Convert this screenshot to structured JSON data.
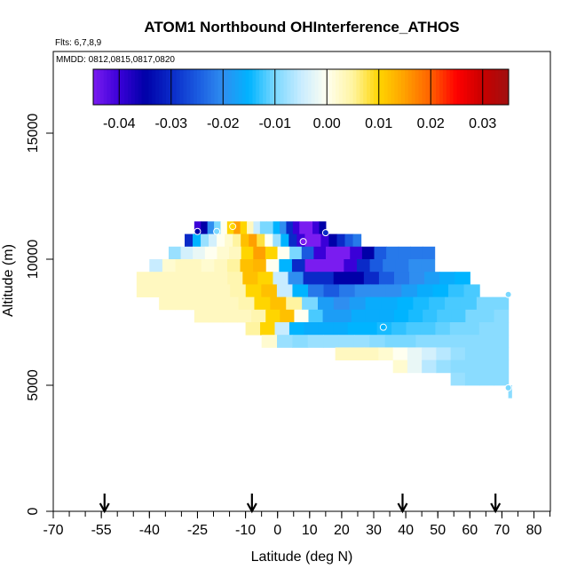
{
  "chart_data": {
    "type": "heatmap",
    "title": "ATOM1 Northbound OHInterference_ATHOS",
    "flights_label": "Flts: 6,7,8,9",
    "dates_label": "MMDD: 0812,0815,0817,0820",
    "xlabel": "Latitude (deg N)",
    "ylabel": "Altitude (m)",
    "xlim": [
      -70,
      85
    ],
    "ylim": [
      0,
      18000
    ],
    "x_ticks": [
      -70,
      -55,
      -40,
      -25,
      -10,
      0,
      10,
      20,
      30,
      40,
      50,
      60,
      70,
      80
    ],
    "x_minor_step": 5,
    "y_ticks": [
      0,
      5000,
      10000,
      15000
    ],
    "colorbar": {
      "range": [
        -0.045,
        0.035
      ],
      "ticks": [
        "-0.04",
        "-0.03",
        "-0.02",
        "-0.01",
        "0.00",
        "0.01",
        "0.02",
        "0.03"
      ],
      "tick_values": [
        -0.04,
        -0.03,
        -0.02,
        -0.01,
        0.0,
        0.01,
        0.02,
        0.03
      ],
      "colors": [
        "#7a1cf0",
        "#3a00d8",
        "#0000a8",
        "#0a2ac8",
        "#1a5ae0",
        "#2f8ef0",
        "#00b4ff",
        "#7ad8ff",
        "#c8ecff",
        "#fffff0",
        "#fff4a0",
        "#ffd500",
        "#ffa000",
        "#ff6000",
        "#ff0000",
        "#c80000",
        "#a01010"
      ]
    },
    "arrow_latitudes": [
      -54,
      -8,
      39,
      68
    ],
    "markers": [
      {
        "lat": -25,
        "alt": 11100,
        "value": -0.035
      },
      {
        "lat": -19,
        "alt": 11100,
        "value": -0.01
      },
      {
        "lat": -14,
        "alt": 11300,
        "value": 0.01
      },
      {
        "lat": 8,
        "alt": 10700,
        "value": -0.045
      },
      {
        "lat": 15,
        "alt": 11050,
        "value": -0.03
      },
      {
        "lat": 33,
        "alt": 7300,
        "value": -0.015
      },
      {
        "lat": 72,
        "alt": 8600,
        "value": -0.01
      },
      {
        "lat": 72,
        "alt": 4900,
        "value": -0.01
      }
    ],
    "rows": [
      {
        "alt": [
          11000,
          11500
        ],
        "lat": [
          -26,
          15
        ],
        "values": [
          -0.04,
          -0.035,
          -0.02,
          -0.01,
          0.0,
          0.01,
          0.015,
          0.01,
          0.003,
          -0.005,
          -0.01,
          -0.01,
          -0.015,
          -0.02,
          -0.03,
          -0.04,
          -0.045,
          -0.045,
          -0.04,
          -0.035
        ]
      },
      {
        "alt": [
          10500,
          11000
        ],
        "lat": [
          -29,
          26
        ],
        "values": [
          -0.03,
          -0.015,
          -0.008,
          -0.004,
          0.0,
          0.002,
          0.005,
          0.012,
          0.015,
          0.008,
          0.0,
          -0.008,
          -0.015,
          -0.03,
          -0.04,
          -0.045,
          -0.045,
          -0.04,
          -0.035,
          -0.03,
          -0.025,
          -0.022
        ]
      },
      {
        "alt": [
          10000,
          10500
        ],
        "lat": [
          -34,
          49
        ],
        "values": [
          -0.008,
          -0.004,
          -0.002,
          0.0,
          0.002,
          0.003,
          0.01,
          0.015,
          0.01,
          0.0,
          -0.01,
          -0.025,
          -0.04,
          -0.045,
          -0.045,
          -0.04,
          -0.035,
          -0.025,
          -0.022,
          -0.022,
          -0.022,
          -0.022
        ]
      },
      {
        "alt": [
          9500,
          10000
        ],
        "lat": [
          -40,
          49
        ],
        "values": [
          -0.005,
          0.002,
          0.003,
          0.003,
          0.002,
          0.003,
          0.005,
          0.012,
          0.013,
          0.0,
          -0.015,
          -0.03,
          -0.045,
          -0.045,
          -0.045,
          -0.04,
          -0.03,
          -0.025,
          -0.022,
          -0.022,
          -0.02,
          -0.02
        ]
      },
      {
        "alt": [
          9000,
          9500
        ],
        "lat": [
          -44,
          60
        ],
        "values": [
          0.003,
          0.003,
          0.003,
          0.003,
          0.003,
          0.003,
          0.004,
          0.012,
          0.01,
          -0.005,
          -0.02,
          -0.03,
          -0.03,
          -0.035,
          -0.035,
          -0.03,
          -0.025,
          -0.022,
          -0.02,
          -0.018,
          -0.016,
          -0.015
        ]
      },
      {
        "alt": [
          8500,
          9000
        ],
        "lat": [
          -44,
          63
        ],
        "values": [
          0.003,
          0.003,
          0.003,
          0.003,
          0.003,
          0.003,
          0.004,
          0.01,
          0.012,
          -0.005,
          -0.015,
          -0.022,
          -0.025,
          -0.022,
          -0.02,
          -0.02,
          -0.02,
          -0.018,
          -0.016,
          -0.015,
          -0.013,
          -0.012
        ]
      },
      {
        "alt": [
          8000,
          8500
        ],
        "lat": [
          -37,
          72
        ],
        "values": [
          0.003,
          0.003,
          0.003,
          0.003,
          0.003,
          0.004,
          0.01,
          0.012,
          0.005,
          -0.01,
          -0.018,
          -0.02,
          -0.018,
          -0.016,
          -0.016,
          -0.015,
          -0.014,
          -0.013,
          -0.012,
          -0.012,
          -0.01,
          -0.01
        ]
      },
      {
        "alt": [
          7500,
          8000
        ],
        "lat": [
          -26,
          72
        ],
        "values": [
          0.003,
          0.003,
          0.003,
          0.003,
          0.004,
          0.01,
          0.012,
          0.0,
          -0.012,
          -0.018,
          -0.018,
          -0.016,
          -0.016,
          -0.016,
          -0.015,
          -0.014,
          -0.013,
          -0.012,
          -0.012,
          -0.01,
          -0.01,
          -0.009
        ]
      },
      {
        "alt": [
          7000,
          7500
        ],
        "lat": [
          -10,
          72
        ],
        "values": [
          0.005,
          0.01,
          -0.005,
          -0.015,
          -0.016,
          -0.016,
          -0.016,
          -0.015,
          -0.015,
          -0.014,
          -0.013,
          -0.012,
          -0.012,
          -0.011,
          -0.01,
          -0.01,
          -0.009,
          -0.009
        ]
      },
      {
        "alt": [
          6500,
          7000
        ],
        "lat": [
          -5,
          72
        ],
        "values": [
          0.002,
          -0.008,
          -0.009,
          -0.008,
          -0.008,
          -0.008,
          -0.008,
          -0.009,
          -0.01,
          -0.01,
          -0.009,
          -0.009,
          -0.009,
          -0.009,
          -0.009,
          -0.009
        ]
      },
      {
        "alt": [
          6000,
          6500
        ],
        "lat": [
          18,
          72
        ],
        "values": [
          0.003,
          0.003,
          0.003,
          0.002,
          0.0,
          -0.002,
          -0.004,
          -0.006,
          -0.008,
          -0.009,
          -0.009,
          -0.009
        ]
      },
      {
        "alt": [
          5500,
          6000
        ],
        "lat": [
          36,
          72
        ],
        "values": [
          0.002,
          -0.002,
          -0.006,
          -0.008,
          -0.009,
          -0.009,
          -0.009,
          -0.009
        ]
      },
      {
        "alt": [
          5000,
          5500
        ],
        "lat": [
          54,
          72
        ],
        "values": [
          -0.008,
          -0.009,
          -0.009,
          -0.009
        ]
      },
      {
        "alt": [
          4500,
          5000
        ],
        "lat": [
          72,
          73
        ],
        "values": [
          -0.009
        ]
      }
    ]
  }
}
